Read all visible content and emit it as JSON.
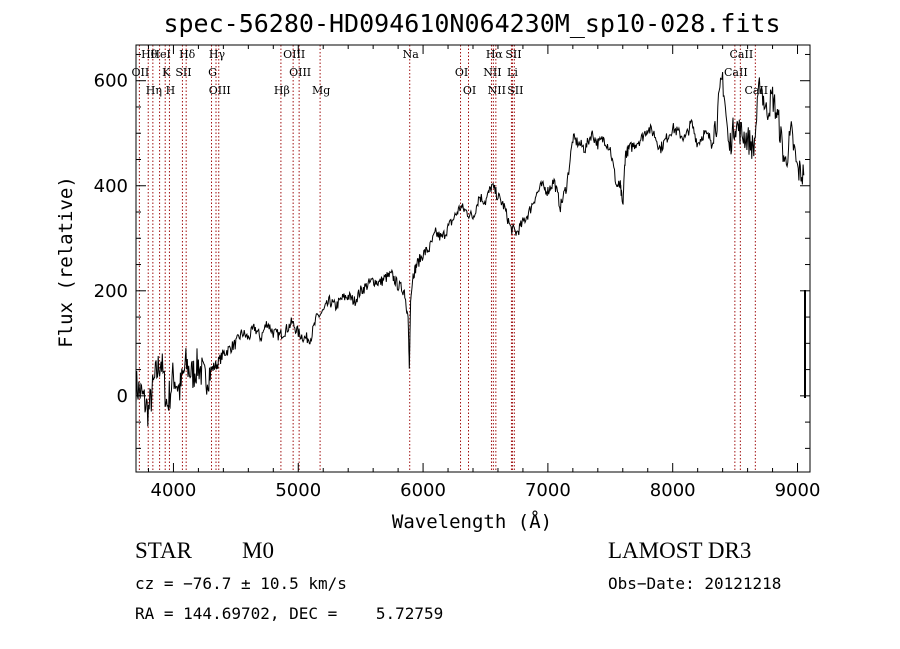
{
  "chart_data": {
    "type": "line",
    "title": "spec-56280-HD094610N064230M_sp10-028.fits",
    "xlabel": "Wavelength (Å)",
    "ylabel": "Flux (relative)",
    "xlim": [
      3700,
      9100
    ],
    "ylim": [
      -145,
      668
    ],
    "xticks": [
      4000,
      5000,
      6000,
      7000,
      8000,
      9000
    ],
    "xtick_labels": [
      "4000",
      "5000",
      "6000",
      "7000",
      "8000",
      "9000"
    ],
    "yticks": [
      0,
      200,
      400,
      600
    ],
    "ytick_labels": [
      "0",
      "200",
      "400",
      "600"
    ],
    "series": [
      {
        "name": "spectrum",
        "x": [
          3700,
          3750,
          3800,
          3850,
          3900,
          3950,
          4000,
          4050,
          4100,
          4150,
          4200,
          4250,
          4300,
          4350,
          4400,
          4450,
          4500,
          4550,
          4600,
          4650,
          4700,
          4750,
          4800,
          4850,
          4900,
          4950,
          5000,
          5050,
          5100,
          5150,
          5200,
          5250,
          5300,
          5350,
          5400,
          5450,
          5500,
          5550,
          5600,
          5650,
          5700,
          5750,
          5800,
          5850,
          5880,
          5890,
          5900,
          5920,
          5950,
          6000,
          6050,
          6100,
          6150,
          6200,
          6250,
          6300,
          6350,
          6400,
          6450,
          6500,
          6550,
          6600,
          6650,
          6700,
          6750,
          6800,
          6850,
          6900,
          6950,
          7000,
          7050,
          7100,
          7150,
          7200,
          7250,
          7300,
          7350,
          7400,
          7450,
          7500,
          7550,
          7580,
          7600,
          7620,
          7650,
          7700,
          7750,
          7800,
          7850,
          7900,
          7950,
          8000,
          8050,
          8100,
          8150,
          8200,
          8250,
          8300,
          8350,
          8400,
          8450,
          8500,
          8550,
          8600,
          8650,
          8700,
          8750,
          8800,
          8850,
          8900,
          8950,
          9000,
          9050
        ],
        "y": [
          20,
          0,
          -30,
          30,
          70,
          -20,
          40,
          10,
          60,
          40,
          60,
          30,
          50,
          60,
          80,
          90,
          100,
          120,
          110,
          130,
          110,
          140,
          120,
          115,
          125,
          140,
          120,
          110,
          110,
          150,
          160,
          180,
          170,
          185,
          190,
          180,
          200,
          210,
          220,
          215,
          225,
          230,
          210,
          200,
          150,
          50,
          180,
          230,
          250,
          270,
          280,
          310,
          300,
          320,
          340,
          360,
          350,
          340,
          380,
          370,
          400,
          380,
          360,
          320,
          310,
          330,
          350,
          380,
          400,
          390,
          410,
          360,
          400,
          490,
          480,
          470,
          500,
          480,
          490,
          470,
          400,
          400,
          360,
          460,
          470,
          480,
          490,
          510,
          500,
          470,
          490,
          510,
          500,
          490,
          520,
          480,
          500,
          490,
          520,
          610,
          470,
          520,
          500,
          490,
          470,
          600,
          540,
          570,
          520,
          440,
          500,
          430,
          420
        ],
        "color": "#000000"
      }
    ],
    "lines": [
      {
        "label": "Hθ",
        "x": 3798
      },
      {
        "label": "OII",
        "x": 3727
      },
      {
        "label": "Hη",
        "x": 3835
      },
      {
        "label": "HeI",
        "x": 3889
      },
      {
        "label": "K",
        "x": 3934
      },
      {
        "label": "H",
        "x": 3968
      },
      {
        "label": "Hδ",
        "x": 4102
      },
      {
        "label": "SII",
        "x": 4072
      },
      {
        "label": "OIII",
        "x": 4363
      },
      {
        "label": "Hγ",
        "x": 4341
      },
      {
        "label": "G",
        "x": 4305
      },
      {
        "label": "Hβ",
        "x": 4861
      },
      {
        "label": "OIII",
        "x": 4959
      },
      {
        "label": "OIII",
        "x": 5007
      },
      {
        "label": "Mg",
        "x": 5175
      },
      {
        "label": "Na",
        "x": 5893
      },
      {
        "label": "OI",
        "x": 6300
      },
      {
        "label": "OI",
        "x": 6364
      },
      {
        "label": "Hα",
        "x": 6563
      },
      {
        "label": "NII",
        "x": 6548
      },
      {
        "label": "NII",
        "x": 6583
      },
      {
        "label": "SII",
        "x": 6716
      },
      {
        "label": "Li",
        "x": 6708
      },
      {
        "label": "SII",
        "x": 6731
      },
      {
        "label": "CaII",
        "x": 8542
      },
      {
        "label": "CaII",
        "x": 8498
      },
      {
        "label": "CaII",
        "x": 8662
      }
    ]
  },
  "info": {
    "class_label": "STAR",
    "subclass": "M0",
    "survey": "LAMOST DR3",
    "cz": "cz = −76.7 ± 10.5 km/s",
    "obs_date": "Obs−Date: 20121218",
    "radec": "RA = 144.69702, DEC =    5.72759"
  }
}
